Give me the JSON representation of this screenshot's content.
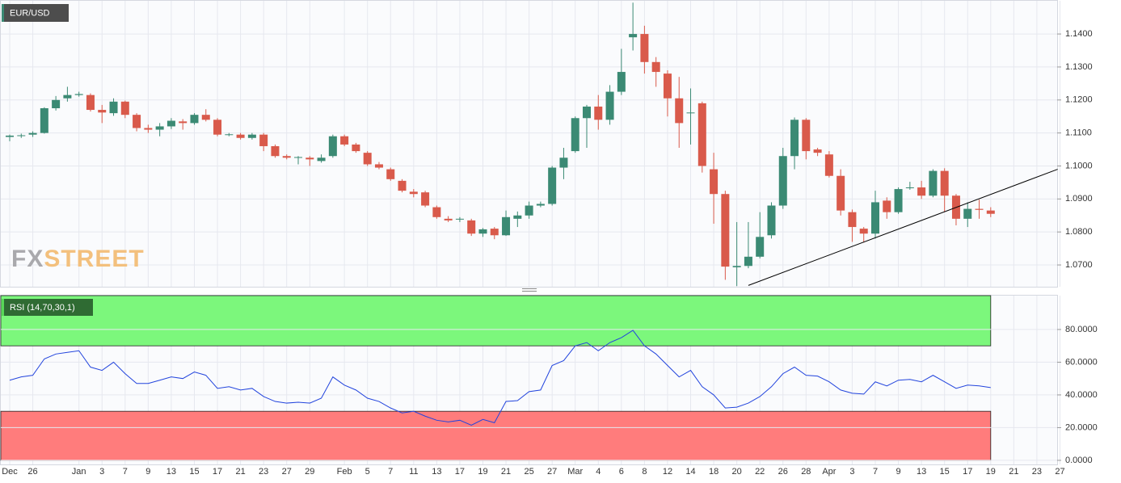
{
  "chart_data": [
    {
      "type": "candlestick",
      "title": "EUR/USD",
      "categories": [
        "Dec",
        null,
        "26",
        null,
        null,
        null,
        "Jan",
        null,
        "3",
        null,
        "7",
        null,
        "9",
        null,
        "13",
        null,
        "15",
        null,
        "17",
        null,
        "21",
        null,
        "23",
        null,
        "27",
        null,
        "29",
        null,
        null,
        "Feb",
        null,
        "5",
        null,
        "7",
        null,
        "11",
        null,
        "13",
        null,
        "17",
        null,
        "19",
        null,
        "21",
        null,
        "25",
        null,
        "27",
        null,
        "Mar",
        null,
        "4",
        null,
        "6",
        null,
        "8",
        null,
        "12",
        null,
        "14",
        null,
        "18",
        null,
        "20",
        null,
        "22",
        null,
        "26",
        null,
        "28",
        null,
        "Apr",
        null,
        "3",
        null,
        "7",
        null,
        "9",
        null,
        "13",
        null,
        "15",
        null,
        "17",
        null,
        "19",
        null,
        "21",
        null,
        "23",
        null,
        "27"
      ],
      "open": [
        1.1088,
        1.1092,
        1.1095,
        1.11,
        1.1175,
        1.1205,
        1.1215,
        1.1215,
        1.117,
        1.116,
        1.1195,
        1.1155,
        1.1115,
        1.111,
        1.112,
        1.1135,
        1.113,
        1.1155,
        1.114,
        1.1095,
        1.1095,
        1.1085,
        1.1095,
        1.106,
        1.103,
        1.1025,
        1.1025,
        1.1015,
        1.103,
        1.109,
        1.1065,
        1.104,
        1.1005,
        1.099,
        1.0955,
        1.0922,
        1.092,
        1.0875,
        1.084,
        1.0838,
        1.0835,
        1.0795,
        1.081,
        1.079,
        1.084,
        1.085,
        1.088,
        1.0885,
        1.0995,
        1.1045,
        1.1145,
        1.118,
        1.114,
        1.1225,
        1.139,
        1.14,
        1.1315,
        1.128,
        1.1205,
        1.116,
        1.119,
        1.099,
        1.0915,
        1.0693,
        1.0697,
        1.0725,
        1.079,
        1.088,
        1.103,
        1.114,
        1.105,
        1.1035,
        1.097,
        1.086,
        1.081,
        1.0795,
        1.0895,
        1.086,
        1.0935,
        1.0935,
        1.091,
        1.0985,
        1.091,
        1.084,
        1.087,
        1.0865,
        null,
        null,
        null,
        null,
        null,
        null
      ],
      "high": [
        1.1095,
        1.1098,
        1.1105,
        1.1178,
        1.1212,
        1.124,
        1.1225,
        1.122,
        1.1185,
        1.1205,
        1.1198,
        1.116,
        1.1125,
        1.113,
        1.1145,
        1.1142,
        1.116,
        1.1172,
        1.1145,
        1.11,
        1.11,
        1.11,
        1.11,
        1.1065,
        1.1035,
        1.103,
        1.103,
        1.1035,
        1.1095,
        1.1095,
        1.107,
        1.1045,
        1.1012,
        1.0995,
        1.096,
        1.093,
        1.0925,
        1.088,
        1.0848,
        1.0845,
        1.084,
        1.0812,
        1.0815,
        1.0865,
        1.0862,
        1.0892,
        1.0892,
        1.1,
        1.1055,
        1.115,
        1.1185,
        1.1215,
        1.1245,
        1.1355,
        1.1495,
        1.1425,
        1.133,
        1.129,
        1.127,
        1.1235,
        1.1195,
        1.104,
        1.0925,
        1.083,
        1.083,
        1.086,
        1.089,
        1.1055,
        1.1147,
        1.1145,
        1.1055,
        1.1045,
        1.099,
        1.0868,
        1.0815,
        1.0925,
        1.0905,
        1.0935,
        1.0952,
        1.0955,
        1.099,
        1.0993,
        1.0915,
        1.089,
        1.0898,
        1.0875,
        null,
        null,
        null,
        null,
        null,
        null
      ],
      "low": [
        1.1075,
        1.1085,
        1.1088,
        1.1098,
        1.1168,
        1.1195,
        1.121,
        1.1165,
        1.113,
        1.1152,
        1.1145,
        1.1105,
        1.11,
        1.109,
        1.1112,
        1.111,
        1.1125,
        1.1135,
        1.109,
        1.109,
        1.108,
        1.108,
        1.1045,
        1.1025,
        1.102,
        1.1005,
        1.1,
        1.101,
        1.1025,
        1.106,
        1.104,
        1.1,
        1.099,
        1.0955,
        1.092,
        1.0905,
        1.0875,
        1.084,
        1.083,
        1.083,
        1.0788,
        1.0785,
        1.0778,
        1.0788,
        1.0815,
        1.084,
        1.0875,
        1.088,
        1.096,
        1.104,
        1.1055,
        1.111,
        1.1125,
        1.1215,
        1.135,
        1.128,
        1.124,
        1.115,
        1.1055,
        1.1065,
        1.098,
        1.0825,
        1.0655,
        1.0636,
        1.069,
        1.072,
        1.078,
        1.087,
        1.099,
        1.102,
        1.103,
        1.0965,
        1.085,
        1.077,
        1.0768,
        1.078,
        1.084,
        1.0855,
        1.0928,
        1.09,
        1.0905,
        1.086,
        1.082,
        1.0815,
        1.084,
        1.0845,
        null,
        null,
        null,
        null,
        null,
        null
      ],
      "close": [
        1.1092,
        1.1093,
        1.11,
        1.1175,
        1.12,
        1.1215,
        1.1218,
        1.117,
        1.1162,
        1.1195,
        1.1155,
        1.1115,
        1.111,
        1.112,
        1.1137,
        1.113,
        1.1155,
        1.114,
        1.1095,
        1.1096,
        1.1085,
        1.1095,
        1.106,
        1.103,
        1.1025,
        1.1027,
        1.102,
        1.1025,
        1.109,
        1.1065,
        1.1045,
        1.1005,
        1.0995,
        1.096,
        1.0925,
        1.0915,
        1.088,
        1.0845,
        1.0835,
        1.084,
        1.0795,
        1.0808,
        1.079,
        1.0845,
        1.085,
        1.088,
        1.0885,
        1.0995,
        1.1025,
        1.1145,
        1.118,
        1.114,
        1.1225,
        1.1285,
        1.14,
        1.1315,
        1.1285,
        1.1205,
        1.113,
        1.1162,
        1.1,
        1.0915,
        1.0695,
        1.0697,
        1.0725,
        1.0785,
        1.088,
        1.103,
        1.114,
        1.1045,
        1.104,
        1.097,
        1.0865,
        1.0815,
        1.0795,
        1.089,
        1.086,
        1.093,
        1.0935,
        1.091,
        1.0985,
        1.091,
        1.084,
        1.087,
        1.0867,
        1.0855,
        null,
        null,
        null,
        null,
        null,
        null
      ],
      "up_color": "#3b8a74",
      "down_color": "#d95a4b",
      "ylim": [
        1.0634,
        1.1503
      ],
      "yticks": [
        {
          "value": 1.07,
          "label": "1.0700"
        },
        {
          "value": 1.08,
          "label": "1.0800"
        },
        {
          "value": 1.09,
          "label": "1.0900"
        },
        {
          "value": 1.1,
          "label": "1.1000"
        },
        {
          "value": 1.11,
          "label": "1.1100"
        },
        {
          "value": 1.12,
          "label": "1.1200"
        },
        {
          "value": 1.13,
          "label": "1.1300"
        },
        {
          "value": 1.14,
          "label": "1.1400"
        }
      ],
      "grid": true,
      "trendline": {
        "x": [
          64,
          90.8
        ],
        "y": [
          1.0638,
          1.099
        ],
        "color": "#000000"
      },
      "watermark": [
        "FX",
        "STREET"
      ]
    },
    {
      "type": "line",
      "title": "RSI (14,70,30,1)",
      "values": [
        49,
        51,
        52,
        62,
        65,
        66,
        67,
        57,
        55,
        60,
        53,
        47,
        47,
        49,
        51,
        50,
        54,
        52,
        44,
        45,
        43,
        44,
        39,
        36,
        35,
        35.5,
        35,
        38,
        51,
        46,
        43,
        38,
        36,
        32,
        29,
        30,
        27,
        24.5,
        23.5,
        24.5,
        21.5,
        25,
        23,
        36,
        36.5,
        42,
        43,
        58,
        61,
        70,
        72,
        67,
        72,
        75,
        79.5,
        70,
        65,
        58,
        51,
        55,
        45,
        40,
        32,
        32.5,
        35,
        39,
        45,
        53,
        57,
        52,
        51.5,
        48,
        43,
        41,
        40.5,
        48,
        45.5,
        49,
        49.5,
        48,
        52,
        48,
        44,
        46,
        45.5,
        44.5,
        null,
        null,
        null,
        null,
        null,
        null
      ],
      "color": "#2244dd",
      "ylim": [
        -2.5,
        101.2
      ],
      "yticks": [
        {
          "value": 0,
          "label": "0.0000"
        },
        {
          "value": 20,
          "label": "20.0000"
        },
        {
          "value": 40,
          "label": "40.0000"
        },
        {
          "value": 60,
          "label": "60.0000"
        },
        {
          "value": 80,
          "label": "80.0000"
        }
      ],
      "overbought": 70,
      "oversold": 30,
      "overbought_color": "#7cf77c",
      "oversold_color": "#ff7c7c",
      "grid": true
    }
  ]
}
